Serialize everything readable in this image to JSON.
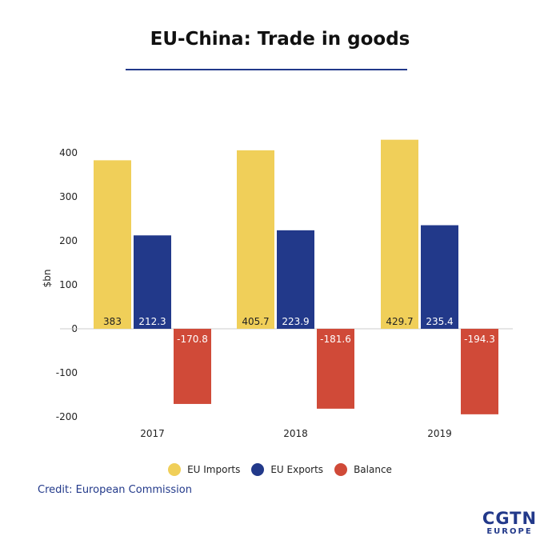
{
  "title": "EU-China: Trade in goods",
  "credit": "Credit: European Commission",
  "logo": {
    "main": "CGTN",
    "sub": "EUROPE"
  },
  "colors": {
    "imports": "#f0cf59",
    "exports": "#22398a",
    "balance": "#d04a38",
    "title_rule": "#22398a"
  },
  "legend": [
    {
      "label": "EU Imports",
      "color": "#f0cf59"
    },
    {
      "label": "EU Exports",
      "color": "#22398a"
    },
    {
      "label": "Balance",
      "color": "#d04a38"
    }
  ],
  "chart_data": {
    "type": "bar",
    "title": "EU-China: Trade in goods",
    "ylabel": "$bn",
    "xlabel": "",
    "categories": [
      "2017",
      "2018",
      "2019"
    ],
    "series": [
      {
        "name": "EU Imports",
        "values": [
          383,
          405.7,
          429.7
        ],
        "labels": [
          "383",
          "405.7",
          "429.7"
        ]
      },
      {
        "name": "EU Exports",
        "values": [
          212.3,
          223.9,
          235.4
        ],
        "labels": [
          "212.3",
          "223.9",
          "235.4"
        ]
      },
      {
        "name": "Balance",
        "values": [
          -170.8,
          -181.6,
          -194.3
        ],
        "labels": [
          "-170.8",
          "-181.6",
          "-194.3"
        ]
      }
    ],
    "yticks": [
      400,
      300,
      200,
      100,
      0,
      -100,
      -200
    ],
    "ytick_labels": [
      "400",
      "300",
      "200",
      "100",
      "0",
      "-100",
      "-200"
    ],
    "ylim": [
      -200,
      420
    ],
    "grid": false,
    "legend_position": "bottom"
  }
}
